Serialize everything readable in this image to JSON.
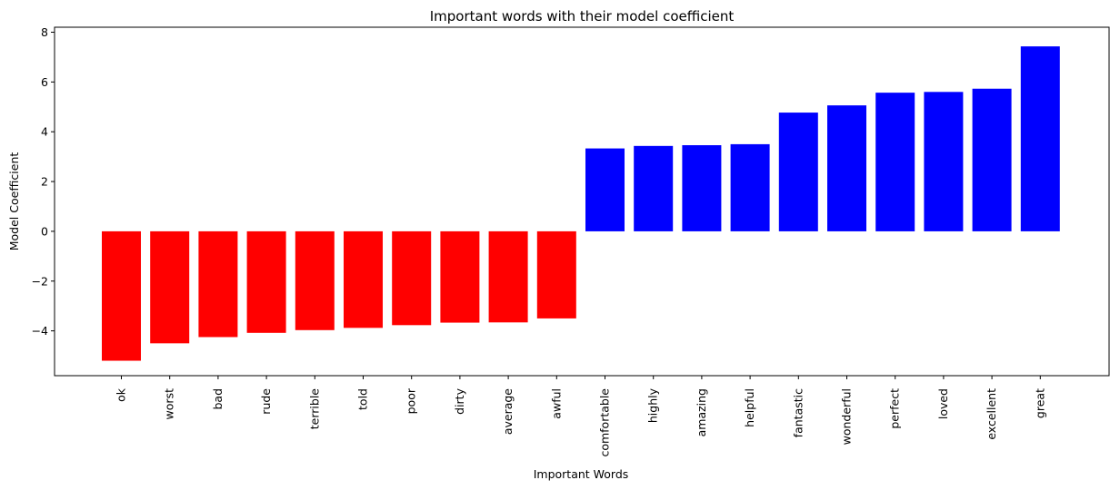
{
  "chart_data": {
    "type": "bar",
    "title": "Important words with their model coefficient",
    "xlabel": "Important Words",
    "ylabel": "Model Coefficient",
    "ylim": [
      -5.8,
      8.2
    ],
    "yticks": [
      -4,
      -2,
      0,
      2,
      4,
      6,
      8
    ],
    "ytick_labels": [
      "−4",
      "−2",
      "0",
      "2",
      "4",
      "6",
      "8"
    ],
    "grid": false,
    "categories": [
      "ok",
      "worst",
      "bad",
      "rude",
      "terrible",
      "told",
      "poor",
      "dirty",
      "average",
      "awful",
      "comfortable",
      "highly",
      "amazing",
      "helpful",
      "fantastic",
      "wonderful",
      "perfect",
      "loved",
      "excellent",
      "great"
    ],
    "values": [
      -5.2,
      -4.5,
      -4.25,
      -4.08,
      -3.97,
      -3.88,
      -3.77,
      -3.67,
      -3.66,
      -3.5,
      3.33,
      3.43,
      3.46,
      3.5,
      4.77,
      5.06,
      5.57,
      5.6,
      5.73,
      7.43
    ],
    "colors": {
      "negative": "#ff0000",
      "positive": "#0000ff",
      "axes": "#000000"
    }
  }
}
